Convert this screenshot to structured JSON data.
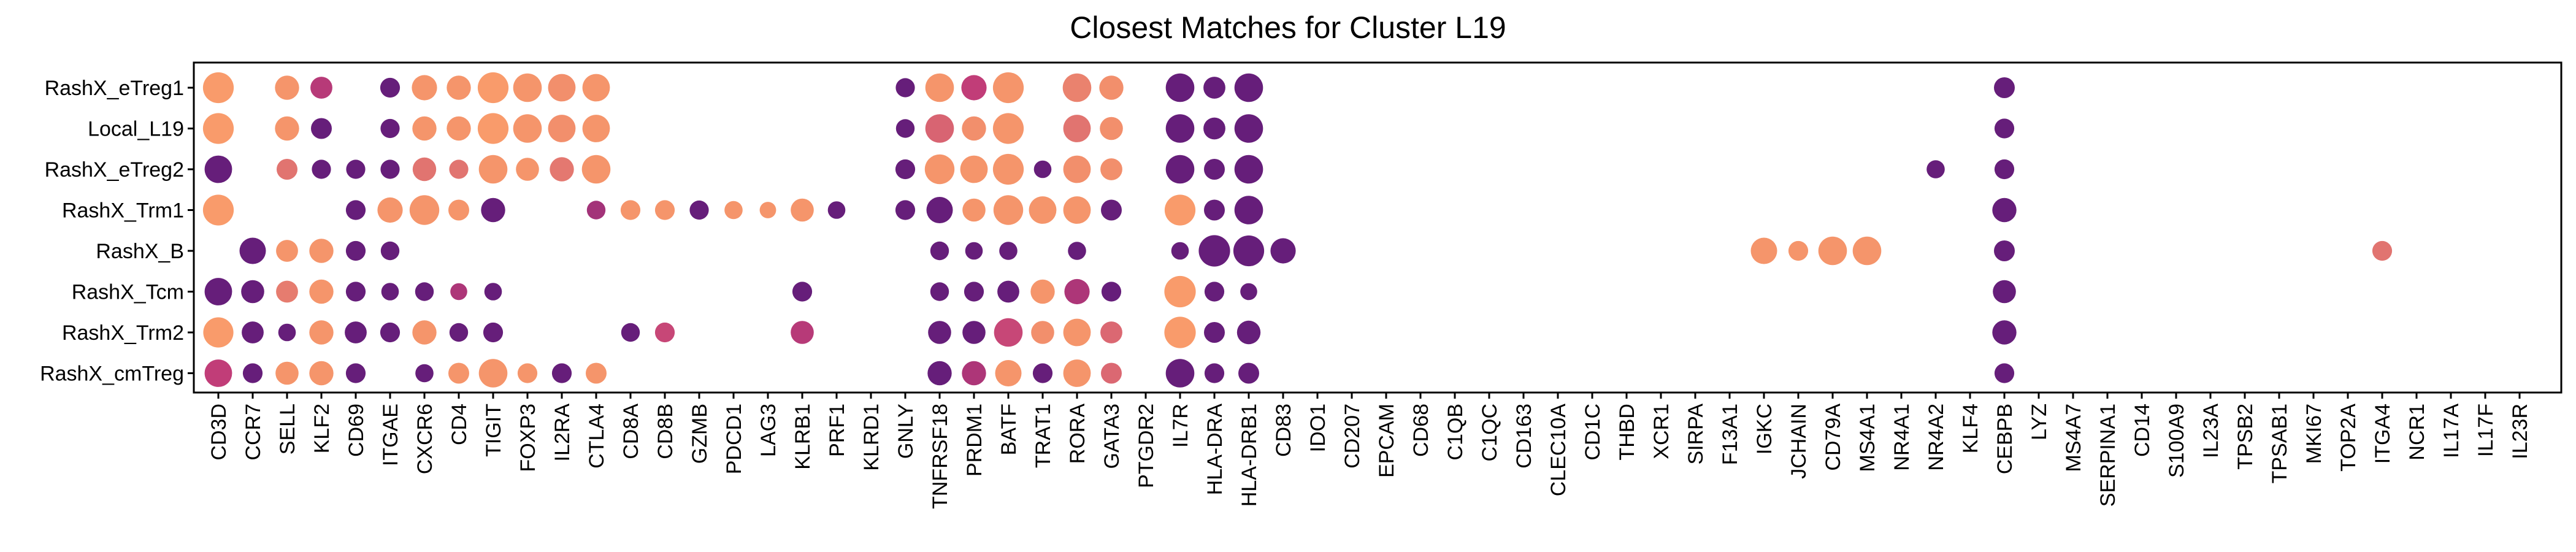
{
  "chart_data": {
    "type": "scatter",
    "title": "Closest Matches for Cluster L19",
    "xlabel": "",
    "ylabel": "",
    "grid": false,
    "legend": "none",
    "rows": [
      "RashX_eTreg1",
      "Local_L19",
      "RashX_eTreg2",
      "RashX_Trm1",
      "RashX_B",
      "RashX_Tcm",
      "RashX_Trm2",
      "RashX_cmTreg"
    ],
    "genes": [
      "CD3D",
      "CCR7",
      "SELL",
      "KLF2",
      "CD69",
      "ITGAE",
      "CXCR6",
      "CD4",
      "TIGIT",
      "FOXP3",
      "IL2RA",
      "CTLA4",
      "CD8A",
      "CD8B",
      "GZMB",
      "PDCD1",
      "LAG3",
      "KLRB1",
      "PRF1",
      "KLRD1",
      "GNLY",
      "TNFRSF18",
      "PRDM1",
      "BATF",
      "TRAT1",
      "RORA",
      "GATA3",
      "PTGDR2",
      "IL7R",
      "HLA-DRA",
      "HLA-DRB1",
      "CD83",
      "IDO1",
      "CD207",
      "EPCAM",
      "CD68",
      "C1QB",
      "C1QC",
      "CD163",
      "CLEC10A",
      "CD1C",
      "THBD",
      "XCR1",
      "SIRPA",
      "F13A1",
      "IGKC",
      "JCHAIN",
      "CD79A",
      "MS4A1",
      "NR4A1",
      "NR4A2",
      "KLF4",
      "CEBPB",
      "LYZ",
      "MS4A7",
      "SERPINA1",
      "CD14",
      "S100A9",
      "IL23A",
      "TPSB2",
      "TPSAB1",
      "MKI67",
      "TOP2A",
      "ITGA4",
      "NCR1",
      "IL17A",
      "IL17F",
      "IL23R"
    ],
    "colors": {
      "low": "#5c1a7a",
      "mid": "#c13d78",
      "high": "#fb9f6a"
    },
    "points": [
      {
        "row": 0,
        "gene": 0,
        "size": 0.95,
        "level": 0.98
      },
      {
        "row": 0,
        "gene": 2,
        "size": 0.65,
        "level": 0.95
      },
      {
        "row": 0,
        "gene": 3,
        "size": 0.55,
        "level": 0.45
      },
      {
        "row": 0,
        "gene": 5,
        "size": 0.45,
        "level": 0.05
      },
      {
        "row": 0,
        "gene": 6,
        "size": 0.7,
        "level": 0.95
      },
      {
        "row": 0,
        "gene": 7,
        "size": 0.65,
        "level": 0.95
      },
      {
        "row": 0,
        "gene": 8,
        "size": 0.95,
        "level": 0.98
      },
      {
        "row": 0,
        "gene": 9,
        "size": 0.85,
        "level": 0.95
      },
      {
        "row": 0,
        "gene": 10,
        "size": 0.8,
        "level": 0.92
      },
      {
        "row": 0,
        "gene": 11,
        "size": 0.8,
        "level": 0.95
      },
      {
        "row": 0,
        "gene": 20,
        "size": 0.42,
        "level": 0.05
      },
      {
        "row": 0,
        "gene": 21,
        "size": 0.85,
        "level": 0.95
      },
      {
        "row": 0,
        "gene": 22,
        "size": 0.7,
        "level": 0.5
      },
      {
        "row": 0,
        "gene": 23,
        "size": 0.95,
        "level": 0.95
      },
      {
        "row": 0,
        "gene": 25,
        "size": 0.85,
        "level": 0.85
      },
      {
        "row": 0,
        "gene": 26,
        "size": 0.65,
        "level": 0.92
      },
      {
        "row": 0,
        "gene": 28,
        "size": 0.85,
        "level": 0.05
      },
      {
        "row": 0,
        "gene": 29,
        "size": 0.55,
        "level": 0.05
      },
      {
        "row": 0,
        "gene": 30,
        "size": 0.85,
        "level": 0.05
      },
      {
        "row": 0,
        "gene": 52,
        "size": 0.5,
        "level": 0.05
      },
      {
        "row": 1,
        "gene": 0,
        "size": 0.95,
        "level": 0.98
      },
      {
        "row": 1,
        "gene": 2,
        "size": 0.65,
        "level": 0.95
      },
      {
        "row": 1,
        "gene": 3,
        "size": 0.5,
        "level": 0.05
      },
      {
        "row": 1,
        "gene": 5,
        "size": 0.42,
        "level": 0.05
      },
      {
        "row": 1,
        "gene": 6,
        "size": 0.65,
        "level": 0.95
      },
      {
        "row": 1,
        "gene": 7,
        "size": 0.65,
        "level": 0.95
      },
      {
        "row": 1,
        "gene": 8,
        "size": 0.95,
        "level": 0.98
      },
      {
        "row": 1,
        "gene": 9,
        "size": 0.85,
        "level": 0.95
      },
      {
        "row": 1,
        "gene": 10,
        "size": 0.8,
        "level": 0.92
      },
      {
        "row": 1,
        "gene": 11,
        "size": 0.8,
        "level": 0.95
      },
      {
        "row": 1,
        "gene": 20,
        "size": 0.4,
        "level": 0.05
      },
      {
        "row": 1,
        "gene": 21,
        "size": 0.85,
        "level": 0.7
      },
      {
        "row": 1,
        "gene": 22,
        "size": 0.65,
        "level": 0.92
      },
      {
        "row": 1,
        "gene": 23,
        "size": 0.95,
        "level": 0.95
      },
      {
        "row": 1,
        "gene": 25,
        "size": 0.8,
        "level": 0.78
      },
      {
        "row": 1,
        "gene": 26,
        "size": 0.6,
        "level": 0.92
      },
      {
        "row": 1,
        "gene": 28,
        "size": 0.85,
        "level": 0.05
      },
      {
        "row": 1,
        "gene": 29,
        "size": 0.55,
        "level": 0.05
      },
      {
        "row": 1,
        "gene": 30,
        "size": 0.85,
        "level": 0.05
      },
      {
        "row": 1,
        "gene": 52,
        "size": 0.45,
        "level": 0.05
      },
      {
        "row": 2,
        "gene": 0,
        "size": 0.8,
        "level": 0.05
      },
      {
        "row": 2,
        "gene": 2,
        "size": 0.5,
        "level": 0.78
      },
      {
        "row": 2,
        "gene": 3,
        "size": 0.42,
        "level": 0.05
      },
      {
        "row": 2,
        "gene": 4,
        "size": 0.42,
        "level": 0.05
      },
      {
        "row": 2,
        "gene": 5,
        "size": 0.42,
        "level": 0.05
      },
      {
        "row": 2,
        "gene": 6,
        "size": 0.62,
        "level": 0.78
      },
      {
        "row": 2,
        "gene": 7,
        "size": 0.42,
        "level": 0.78
      },
      {
        "row": 2,
        "gene": 8,
        "size": 0.85,
        "level": 0.95
      },
      {
        "row": 2,
        "gene": 9,
        "size": 0.6,
        "level": 0.95
      },
      {
        "row": 2,
        "gene": 10,
        "size": 0.65,
        "level": 0.8
      },
      {
        "row": 2,
        "gene": 11,
        "size": 0.85,
        "level": 0.95
      },
      {
        "row": 2,
        "gene": 20,
        "size": 0.45,
        "level": 0.05
      },
      {
        "row": 2,
        "gene": 21,
        "size": 0.9,
        "level": 0.95
      },
      {
        "row": 2,
        "gene": 22,
        "size": 0.8,
        "level": 0.95
      },
      {
        "row": 2,
        "gene": 23,
        "size": 0.95,
        "level": 0.95
      },
      {
        "row": 2,
        "gene": 24,
        "size": 0.35,
        "level": 0.05
      },
      {
        "row": 2,
        "gene": 25,
        "size": 0.8,
        "level": 0.92
      },
      {
        "row": 2,
        "gene": 26,
        "size": 0.55,
        "level": 0.92
      },
      {
        "row": 2,
        "gene": 28,
        "size": 0.85,
        "level": 0.05
      },
      {
        "row": 2,
        "gene": 29,
        "size": 0.5,
        "level": 0.05
      },
      {
        "row": 2,
        "gene": 30,
        "size": 0.85,
        "level": 0.05
      },
      {
        "row": 2,
        "gene": 50,
        "size": 0.38,
        "level": 0.05
      },
      {
        "row": 2,
        "gene": 52,
        "size": 0.45,
        "level": 0.05
      },
      {
        "row": 3,
        "gene": 0,
        "size": 0.95,
        "level": 0.98
      },
      {
        "row": 3,
        "gene": 4,
        "size": 0.45,
        "level": 0.05
      },
      {
        "row": 3,
        "gene": 5,
        "size": 0.7,
        "level": 0.95
      },
      {
        "row": 3,
        "gene": 6,
        "size": 0.9,
        "level": 0.95
      },
      {
        "row": 3,
        "gene": 7,
        "size": 0.5,
        "level": 0.95
      },
      {
        "row": 3,
        "gene": 8,
        "size": 0.65,
        "level": 0.05
      },
      {
        "row": 3,
        "gene": 11,
        "size": 0.4,
        "level": 0.35
      },
      {
        "row": 3,
        "gene": 12,
        "size": 0.45,
        "level": 0.95
      },
      {
        "row": 3,
        "gene": 13,
        "size": 0.45,
        "level": 0.95
      },
      {
        "row": 3,
        "gene": 14,
        "size": 0.42,
        "level": 0.05
      },
      {
        "row": 3,
        "gene": 15,
        "size": 0.38,
        "level": 0.95
      },
      {
        "row": 3,
        "gene": 16,
        "size": 0.3,
        "level": 0.95
      },
      {
        "row": 3,
        "gene": 17,
        "size": 0.6,
        "level": 0.95
      },
      {
        "row": 3,
        "gene": 18,
        "size": 0.35,
        "level": 0.05
      },
      {
        "row": 3,
        "gene": 20,
        "size": 0.45,
        "level": 0.05
      },
      {
        "row": 3,
        "gene": 21,
        "size": 0.75,
        "level": 0.05
      },
      {
        "row": 3,
        "gene": 22,
        "size": 0.6,
        "level": 0.95
      },
      {
        "row": 3,
        "gene": 23,
        "size": 0.9,
        "level": 0.95
      },
      {
        "row": 3,
        "gene": 24,
        "size": 0.8,
        "level": 0.95
      },
      {
        "row": 3,
        "gene": 25,
        "size": 0.8,
        "level": 0.95
      },
      {
        "row": 3,
        "gene": 26,
        "size": 0.5,
        "level": 0.05
      },
      {
        "row": 3,
        "gene": 28,
        "size": 0.95,
        "level": 0.98
      },
      {
        "row": 3,
        "gene": 29,
        "size": 0.5,
        "level": 0.05
      },
      {
        "row": 3,
        "gene": 30,
        "size": 0.85,
        "level": 0.05
      },
      {
        "row": 3,
        "gene": 52,
        "size": 0.65,
        "level": 0.05
      },
      {
        "row": 4,
        "gene": 1,
        "size": 0.75,
        "level": 0.05
      },
      {
        "row": 4,
        "gene": 2,
        "size": 0.55,
        "level": 0.95
      },
      {
        "row": 4,
        "gene": 3,
        "size": 0.65,
        "level": 0.95
      },
      {
        "row": 4,
        "gene": 4,
        "size": 0.45,
        "level": 0.05
      },
      {
        "row": 4,
        "gene": 5,
        "size": 0.4,
        "level": 0.05
      },
      {
        "row": 4,
        "gene": 21,
        "size": 0.4,
        "level": 0.05
      },
      {
        "row": 4,
        "gene": 22,
        "size": 0.35,
        "level": 0.05
      },
      {
        "row": 4,
        "gene": 23,
        "size": 0.38,
        "level": 0.05
      },
      {
        "row": 4,
        "gene": 25,
        "size": 0.38,
        "level": 0.05
      },
      {
        "row": 4,
        "gene": 28,
        "size": 0.35,
        "level": 0.05
      },
      {
        "row": 4,
        "gene": 29,
        "size": 0.98,
        "level": 0.05
      },
      {
        "row": 4,
        "gene": 30,
        "size": 0.95,
        "level": 0.05
      },
      {
        "row": 4,
        "gene": 31,
        "size": 0.7,
        "level": 0.05
      },
      {
        "row": 4,
        "gene": 45,
        "size": 0.75,
        "level": 0.95
      },
      {
        "row": 4,
        "gene": 46,
        "size": 0.45,
        "level": 0.95
      },
      {
        "row": 4,
        "gene": 47,
        "size": 0.85,
        "level": 0.95
      },
      {
        "row": 4,
        "gene": 48,
        "size": 0.85,
        "level": 0.95
      },
      {
        "row": 4,
        "gene": 52,
        "size": 0.5,
        "level": 0.05
      },
      {
        "row": 4,
        "gene": 63,
        "size": 0.45,
        "level": 0.78
      },
      {
        "row": 5,
        "gene": 0,
        "size": 0.8,
        "level": 0.05
      },
      {
        "row": 5,
        "gene": 1,
        "size": 0.6,
        "level": 0.05
      },
      {
        "row": 5,
        "gene": 2,
        "size": 0.55,
        "level": 0.82
      },
      {
        "row": 5,
        "gene": 3,
        "size": 0.65,
        "level": 0.95
      },
      {
        "row": 5,
        "gene": 4,
        "size": 0.45,
        "level": 0.05
      },
      {
        "row": 5,
        "gene": 5,
        "size": 0.35,
        "level": 0.05
      },
      {
        "row": 5,
        "gene": 6,
        "size": 0.4,
        "level": 0.05
      },
      {
        "row": 5,
        "gene": 7,
        "size": 0.32,
        "level": 0.4
      },
      {
        "row": 5,
        "gene": 8,
        "size": 0.35,
        "level": 0.05
      },
      {
        "row": 5,
        "gene": 17,
        "size": 0.45,
        "level": 0.05
      },
      {
        "row": 5,
        "gene": 21,
        "size": 0.4,
        "level": 0.05
      },
      {
        "row": 5,
        "gene": 22,
        "size": 0.45,
        "level": 0.05
      },
      {
        "row": 5,
        "gene": 23,
        "size": 0.55,
        "level": 0.05
      },
      {
        "row": 5,
        "gene": 24,
        "size": 0.65,
        "level": 0.95
      },
      {
        "row": 5,
        "gene": 25,
        "size": 0.7,
        "level": 0.4
      },
      {
        "row": 5,
        "gene": 26,
        "size": 0.45,
        "level": 0.05
      },
      {
        "row": 5,
        "gene": 28,
        "size": 0.98,
        "level": 0.98
      },
      {
        "row": 5,
        "gene": 29,
        "size": 0.45,
        "level": 0.05
      },
      {
        "row": 5,
        "gene": 30,
        "size": 0.32,
        "level": 0.05
      },
      {
        "row": 5,
        "gene": 52,
        "size": 0.6,
        "level": 0.05
      },
      {
        "row": 6,
        "gene": 0,
        "size": 0.92,
        "level": 0.98
      },
      {
        "row": 6,
        "gene": 1,
        "size": 0.55,
        "level": 0.05
      },
      {
        "row": 6,
        "gene": 2,
        "size": 0.35,
        "level": 0.05
      },
      {
        "row": 6,
        "gene": 3,
        "size": 0.65,
        "level": 0.95
      },
      {
        "row": 6,
        "gene": 4,
        "size": 0.55,
        "level": 0.05
      },
      {
        "row": 6,
        "gene": 5,
        "size": 0.45,
        "level": 0.05
      },
      {
        "row": 6,
        "gene": 6,
        "size": 0.65,
        "level": 0.95
      },
      {
        "row": 6,
        "gene": 7,
        "size": 0.4,
        "level": 0.05
      },
      {
        "row": 6,
        "gene": 8,
        "size": 0.45,
        "level": 0.05
      },
      {
        "row": 6,
        "gene": 12,
        "size": 0.4,
        "level": 0.05
      },
      {
        "row": 6,
        "gene": 13,
        "size": 0.45,
        "level": 0.55
      },
      {
        "row": 6,
        "gene": 17,
        "size": 0.6,
        "level": 0.45
      },
      {
        "row": 6,
        "gene": 21,
        "size": 0.6,
        "level": 0.05
      },
      {
        "row": 6,
        "gene": 22,
        "size": 0.6,
        "level": 0.05
      },
      {
        "row": 6,
        "gene": 23,
        "size": 0.85,
        "level": 0.55
      },
      {
        "row": 6,
        "gene": 24,
        "size": 0.6,
        "level": 0.92
      },
      {
        "row": 6,
        "gene": 25,
        "size": 0.8,
        "level": 0.95
      },
      {
        "row": 6,
        "gene": 26,
        "size": 0.55,
        "level": 0.72
      },
      {
        "row": 6,
        "gene": 28,
        "size": 0.98,
        "level": 0.98
      },
      {
        "row": 6,
        "gene": 29,
        "size": 0.5,
        "level": 0.05
      },
      {
        "row": 6,
        "gene": 30,
        "size": 0.62,
        "level": 0.05
      },
      {
        "row": 6,
        "gene": 52,
        "size": 0.65,
        "level": 0.05
      },
      {
        "row": 7,
        "gene": 0,
        "size": 0.8,
        "level": 0.5
      },
      {
        "row": 7,
        "gene": 1,
        "size": 0.45,
        "level": 0.05
      },
      {
        "row": 7,
        "gene": 2,
        "size": 0.6,
        "level": 0.95
      },
      {
        "row": 7,
        "gene": 3,
        "size": 0.65,
        "level": 0.95
      },
      {
        "row": 7,
        "gene": 4,
        "size": 0.45,
        "level": 0.05
      },
      {
        "row": 7,
        "gene": 6,
        "size": 0.38,
        "level": 0.05
      },
      {
        "row": 7,
        "gene": 7,
        "size": 0.5,
        "level": 0.95
      },
      {
        "row": 7,
        "gene": 8,
        "size": 0.85,
        "level": 0.95
      },
      {
        "row": 7,
        "gene": 9,
        "size": 0.45,
        "level": 0.95
      },
      {
        "row": 7,
        "gene": 10,
        "size": 0.45,
        "level": 0.05
      },
      {
        "row": 7,
        "gene": 11,
        "size": 0.5,
        "level": 0.95
      },
      {
        "row": 7,
        "gene": 21,
        "size": 0.65,
        "level": 0.05
      },
      {
        "row": 7,
        "gene": 22,
        "size": 0.65,
        "level": 0.4
      },
      {
        "row": 7,
        "gene": 23,
        "size": 0.75,
        "level": 0.95
      },
      {
        "row": 7,
        "gene": 24,
        "size": 0.45,
        "level": 0.05
      },
      {
        "row": 7,
        "gene": 25,
        "size": 0.8,
        "level": 0.95
      },
      {
        "row": 7,
        "gene": 26,
        "size": 0.5,
        "level": 0.72
      },
      {
        "row": 7,
        "gene": 28,
        "size": 0.85,
        "level": 0.05
      },
      {
        "row": 7,
        "gene": 29,
        "size": 0.45,
        "level": 0.05
      },
      {
        "row": 7,
        "gene": 30,
        "size": 0.5,
        "level": 0.05
      },
      {
        "row": 7,
        "gene": 52,
        "size": 0.45,
        "level": 0.05
      }
    ]
  }
}
